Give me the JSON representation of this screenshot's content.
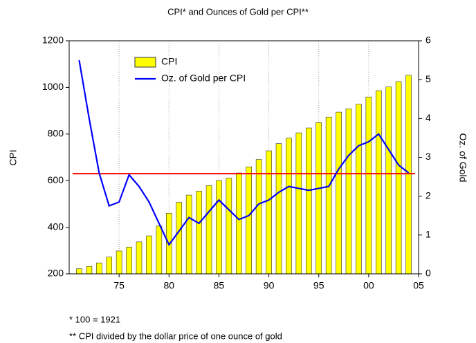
{
  "chart_data": {
    "type": "bar_line",
    "title": "CPI* and Ounces of Gold per CPI**",
    "y_label": "CPI",
    "y2_label": "Oz. of Gold",
    "x": [
      1971,
      1972,
      1973,
      1974,
      1975,
      1976,
      1977,
      1978,
      1979,
      1980,
      1981,
      1982,
      1983,
      1984,
      1985,
      1986,
      1987,
      1988,
      1989,
      1990,
      1991,
      1992,
      1993,
      1994,
      1995,
      1996,
      1997,
      1998,
      1999,
      2000,
      2001,
      2002,
      2003,
      2004
    ],
    "series": [
      {
        "name": "CPI",
        "color": "#ffff00",
        "type": "bar",
        "values": [
          222,
          232,
          247,
          272,
          298,
          315,
          337,
          363,
          405,
          460,
          507,
          538,
          555,
          579,
          600,
          611,
          633,
          659,
          691,
          728,
          759,
          782,
          805,
          826,
          849,
          873,
          894,
          908,
          928,
          959,
          986,
          1002,
          1025,
          1052
        ]
      },
      {
        "name": "Oz. of Gold per CPI",
        "color": "#0000ff",
        "type": "line",
        "axis": "y2",
        "values": [
          5.5,
          4.0,
          2.6,
          1.75,
          1.85,
          2.55,
          2.25,
          1.85,
          1.3,
          0.75,
          1.1,
          1.45,
          1.3,
          1.6,
          1.9,
          1.65,
          1.4,
          1.5,
          1.8,
          1.9,
          2.1,
          2.25,
          2.2,
          2.15,
          2.2,
          2.25,
          2.7,
          3.05,
          3.3,
          3.4,
          3.6,
          3.2,
          2.8,
          2.6
        ]
      }
    ],
    "reference_line": {
      "value": 630,
      "color": "#ff0000"
    },
    "xlim": [
      1970,
      2005
    ],
    "xticks": [
      {
        "value": 1975,
        "label": "75"
      },
      {
        "value": 1980,
        "label": "80"
      },
      {
        "value": 1985,
        "label": "85"
      },
      {
        "value": 1990,
        "label": "90"
      },
      {
        "value": 1995,
        "label": "95"
      },
      {
        "value": 2000,
        "label": "00"
      },
      {
        "value": 2005,
        "label": "05"
      }
    ],
    "ylim": [
      200,
      1200
    ],
    "yticks": [
      200,
      400,
      600,
      800,
      1000,
      1200
    ],
    "y2lim": [
      0,
      6
    ],
    "y2ticks": [
      0,
      1,
      2,
      3,
      4,
      5,
      6
    ],
    "grid": true,
    "legend": "upper left",
    "footnotes": [
      "* 100 = 1921",
      "** CPI divided by the dollar price of one ounce of gold"
    ]
  }
}
